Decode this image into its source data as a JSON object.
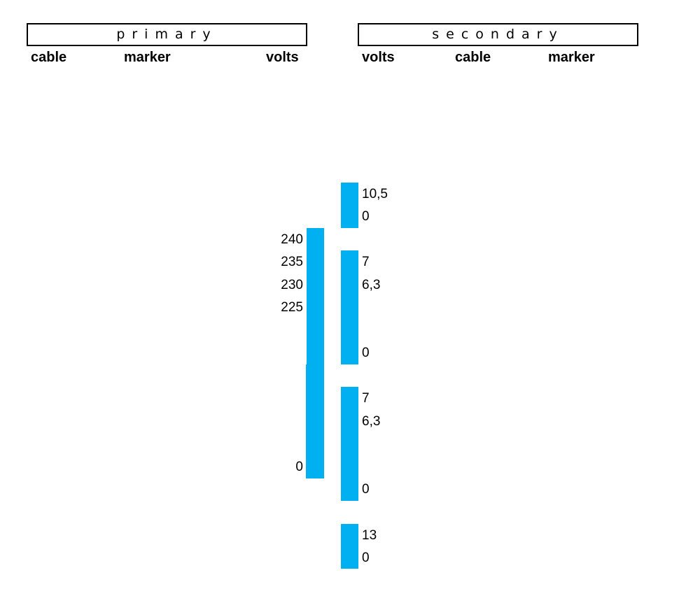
{
  "accent_color": "#00b0f0",
  "primary": {
    "title": "primary",
    "columns": [
      "cable",
      "marker",
      "volts"
    ],
    "winding": {
      "taps": [
        "240",
        "235",
        "230",
        "225",
        "0"
      ]
    }
  },
  "secondary": {
    "title": "secondary",
    "columns": [
      "volts",
      "cable",
      "marker"
    ],
    "windings": [
      {
        "taps": [
          "10,5",
          "0"
        ]
      },
      {
        "taps": [
          "7",
          "6,3",
          "0"
        ]
      },
      {
        "taps": [
          "7",
          "6,3",
          "0"
        ]
      },
      {
        "taps": [
          "13",
          "0"
        ]
      }
    ]
  }
}
